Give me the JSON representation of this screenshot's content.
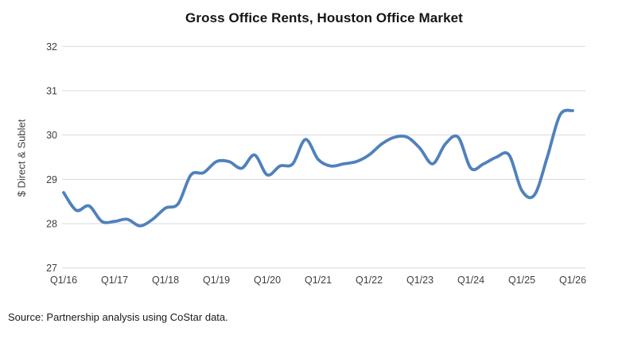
{
  "title": "Gross Office Rents, Houston Office Market",
  "source": "Source: Partnership analysis using CoStar data.",
  "colors": {
    "line": "#4F81BD",
    "gridline": "#D9D9D9",
    "tick_text": "#3f3f3f",
    "background": "#ffffff"
  },
  "chart_data": {
    "type": "line",
    "title": "Gross Office Rents, Houston Office Market",
    "xlabel": "",
    "ylabel": "$ Direct & Sublet",
    "legend_position": "none",
    "grid": true,
    "smooth": true,
    "ylim": [
      27,
      32
    ],
    "y_ticks": [
      27,
      28,
      29,
      30,
      31,
      32
    ],
    "x_tick_labels": [
      "Q1/16",
      "Q1/17",
      "Q1/18",
      "Q1/19",
      "Q1/20",
      "Q1/21",
      "Q1/22",
      "Q1/23",
      "Q1/24",
      "Q1/25",
      "Q1/26"
    ],
    "x": [
      "Q1/16",
      "Q2/16",
      "Q3/16",
      "Q4/16",
      "Q1/17",
      "Q2/17",
      "Q3/17",
      "Q4/17",
      "Q1/18",
      "Q2/18",
      "Q3/18",
      "Q4/18",
      "Q1/19",
      "Q2/19",
      "Q3/19",
      "Q4/19",
      "Q1/20",
      "Q2/20",
      "Q3/20",
      "Q4/20",
      "Q1/21",
      "Q2/21",
      "Q3/21",
      "Q4/21",
      "Q1/22",
      "Q2/22",
      "Q3/22",
      "Q4/22",
      "Q1/23",
      "Q2/23",
      "Q3/23",
      "Q4/23",
      "Q1/24",
      "Q2/24",
      "Q3/24",
      "Q4/24",
      "Q1/25",
      "Q2/25",
      "Q3/25",
      "Q4/25",
      "Q1/26"
    ],
    "series": [
      {
        "name": "$ Direct & Sublet",
        "values": [
          28.7,
          28.3,
          28.4,
          28.05,
          28.05,
          28.1,
          27.95,
          28.1,
          28.35,
          28.45,
          29.1,
          29.15,
          29.4,
          29.4,
          29.25,
          29.55,
          29.1,
          29.3,
          29.35,
          29.9,
          29.45,
          29.3,
          29.35,
          29.4,
          29.55,
          29.8,
          29.95,
          29.95,
          29.7,
          29.35,
          29.8,
          29.95,
          29.25,
          29.35,
          29.5,
          29.55,
          28.75,
          28.65,
          29.5,
          30.45,
          30.55
        ]
      }
    ]
  }
}
